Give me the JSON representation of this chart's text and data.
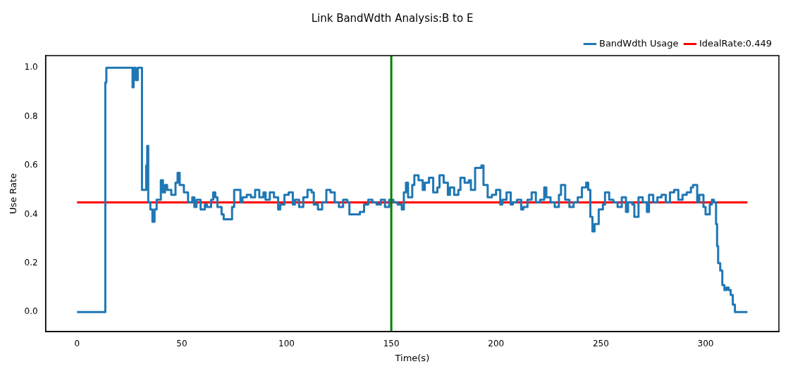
{
  "chart_data": {
    "type": "line",
    "title": "Link BandWdth Analysis:B to E",
    "xlabel": "Time(s)",
    "ylabel": "Use Rate",
    "xlim": [
      -15,
      335
    ],
    "ylim": [
      -0.08,
      1.05
    ],
    "xticks": [
      0,
      50,
      100,
      150,
      200,
      250,
      300
    ],
    "yticks": [
      {
        "value": 0,
        "label": "0.0"
      },
      0.2,
      0.4,
      0.6,
      0.8,
      {
        "value": 1,
        "label": "1.0"
      }
    ],
    "grid": false,
    "legend": "top right",
    "ref_lines": [
      {
        "axis": "x",
        "value": 150,
        "color": "#008000"
      }
    ],
    "series": [
      {
        "name": "BandWdth Usage",
        "type": "step",
        "color": "#1f77b4",
        "x": [
          0,
          13,
          13.5,
          14,
          26,
          26.5,
          27,
          28,
          29,
          31,
          33,
          33.5,
          34,
          35,
          36,
          37,
          38,
          40,
          41,
          42,
          43,
          45,
          47,
          48,
          49,
          51,
          53,
          55,
          56,
          57,
          59,
          61,
          62,
          64,
          65,
          66,
          67,
          69,
          70,
          72,
          74,
          75,
          77,
          78,
          79,
          81,
          83,
          85,
          87,
          89,
          90,
          92,
          94,
          96,
          97,
          99,
          101,
          103,
          104,
          106,
          108,
          110,
          112,
          113,
          115,
          117,
          119,
          121,
          123,
          125,
          127,
          129,
          130,
          133,
          135,
          137,
          139,
          141,
          143,
          145,
          147,
          149,
          151,
          153,
          155,
          156,
          157,
          158,
          160,
          161,
          163,
          165,
          166,
          168,
          170,
          172,
          173,
          175,
          177,
          178,
          180,
          182,
          183,
          185,
          187,
          188,
          190,
          193,
          194,
          196,
          198,
          200,
          202,
          203,
          205,
          207,
          208,
          210,
          212,
          213,
          215,
          217,
          219,
          221,
          223,
          224,
          226,
          228,
          230,
          231,
          233,
          235,
          237,
          239,
          241,
          243,
          244,
          245,
          246,
          247,
          249,
          251,
          252,
          254,
          256,
          258,
          260,
          262,
          263,
          265,
          266,
          268,
          270,
          272,
          273,
          275,
          277,
          279,
          281,
          283,
          285,
          287,
          289,
          291,
          293,
          294,
          296,
          297,
          299,
          300,
          301,
          302,
          303,
          304,
          305,
          305.5,
          306,
          307,
          308,
          309,
          310,
          311,
          312,
          313,
          314,
          320
        ],
        "values": [
          0,
          0,
          0.94,
          1.0,
          1.0,
          0.92,
          1.0,
          0.95,
          1.0,
          0.5,
          0.6,
          0.68,
          0.45,
          0.42,
          0.37,
          0.42,
          0.46,
          0.54,
          0.49,
          0.52,
          0.5,
          0.48,
          0.53,
          0.57,
          0.52,
          0.49,
          0.45,
          0.47,
          0.43,
          0.46,
          0.42,
          0.44,
          0.43,
          0.46,
          0.49,
          0.47,
          0.43,
          0.4,
          0.38,
          0.38,
          0.43,
          0.5,
          0.5,
          0.45,
          0.47,
          0.48,
          0.47,
          0.5,
          0.47,
          0.49,
          0.46,
          0.49,
          0.47,
          0.42,
          0.44,
          0.48,
          0.49,
          0.44,
          0.46,
          0.43,
          0.47,
          0.5,
          0.49,
          0.44,
          0.42,
          0.45,
          0.5,
          0.49,
          0.45,
          0.43,
          0.46,
          0.45,
          0.4,
          0.4,
          0.41,
          0.44,
          0.46,
          0.45,
          0.44,
          0.46,
          0.43,
          0.46,
          0.45,
          0.44,
          0.42,
          0.49,
          0.53,
          0.47,
          0.52,
          0.56,
          0.54,
          0.5,
          0.53,
          0.55,
          0.49,
          0.51,
          0.56,
          0.53,
          0.48,
          0.51,
          0.48,
          0.5,
          0.55,
          0.53,
          0.54,
          0.5,
          0.59,
          0.6,
          0.52,
          0.47,
          0.48,
          0.5,
          0.44,
          0.46,
          0.49,
          0.44,
          0.45,
          0.46,
          0.42,
          0.43,
          0.46,
          0.49,
          0.45,
          0.46,
          0.51,
          0.47,
          0.45,
          0.43,
          0.48,
          0.52,
          0.46,
          0.43,
          0.45,
          0.47,
          0.51,
          0.53,
          0.5,
          0.39,
          0.33,
          0.36,
          0.42,
          0.44,
          0.49,
          0.46,
          0.45,
          0.43,
          0.47,
          0.41,
          0.45,
          0.44,
          0.39,
          0.47,
          0.45,
          0.41,
          0.48,
          0.45,
          0.47,
          0.48,
          0.45,
          0.49,
          0.5,
          0.46,
          0.48,
          0.49,
          0.51,
          0.52,
          0.45,
          0.48,
          0.43,
          0.4,
          0.4,
          0.44,
          0.46,
          0.45,
          0.36,
          0.27,
          0.2,
          0.17,
          0.11,
          0.09,
          0.1,
          0.09,
          0.07,
          0.03,
          0,
          0
        ]
      },
      {
        "name": "IdealRate:0.449",
        "color": "#ff0000",
        "x": [
          0,
          320
        ],
        "values": [
          0.449,
          0.449
        ]
      }
    ]
  }
}
